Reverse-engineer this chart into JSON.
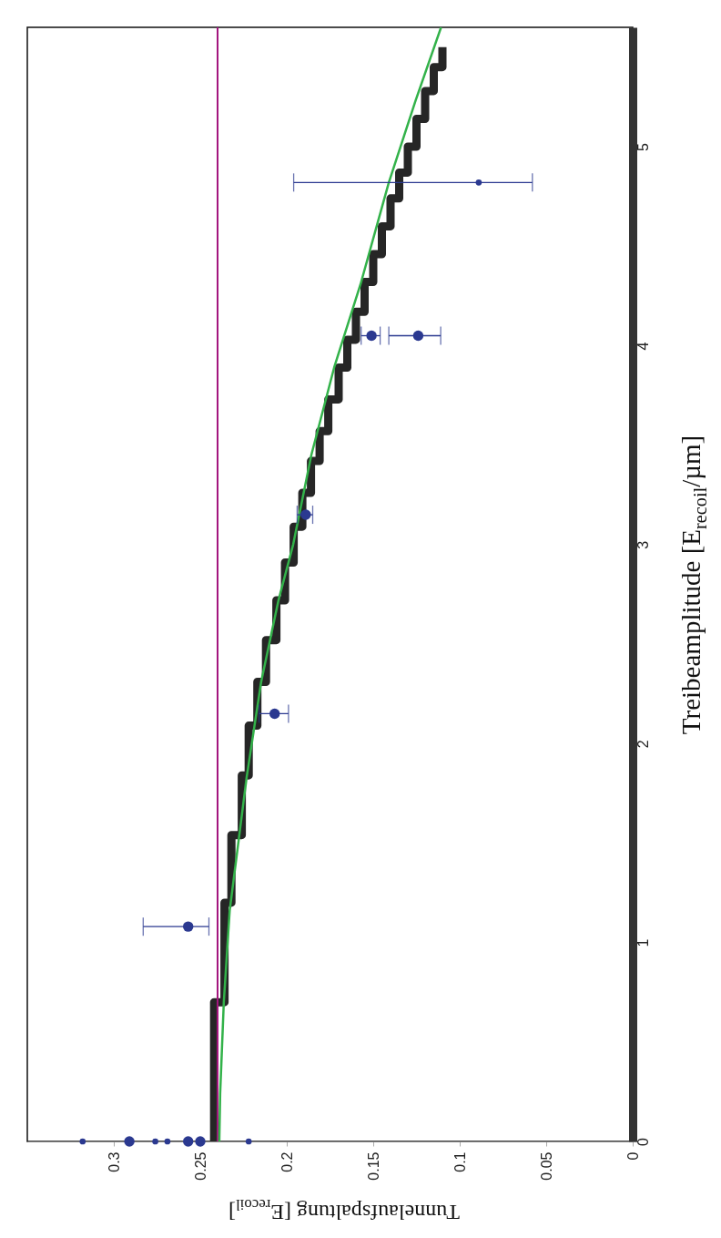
{
  "chart_data": {
    "type": "scatter",
    "xlabel": "Tunnelaufspaltung [E$_{recoil}$]",
    "ylabel": "Treibeamplitude [E$_{recoil}$/µm]",
    "xlim": [
      0.35,
      0
    ],
    "xticks": [
      0.3,
      0.25,
      0.2,
      0.15,
      0.1,
      0.05,
      0
    ],
    "ylim": [
      0,
      5.6
    ],
    "yticks": [
      0,
      1,
      2,
      3,
      4,
      5
    ],
    "grid": false,
    "ref_lines": [
      {
        "axis": "x",
        "value": 0.24,
        "color": "#a3167e"
      }
    ],
    "series": [
      {
        "type": "step",
        "color": "#262626",
        "x": [
          0.242,
          0.242,
          0.236,
          0.232,
          0.226,
          0.222,
          0.217,
          0.212,
          0.206,
          0.201,
          0.196,
          0.191,
          0.186,
          0.181,
          0.176,
          0.17,
          0.165,
          0.16,
          0.155,
          0.15,
          0.145,
          0.14,
          0.135,
          0.13,
          0.125,
          0.12,
          0.115,
          0.11
        ],
        "values": [
          0,
          0.7,
          1.2,
          1.54,
          1.84,
          2.09,
          2.31,
          2.52,
          2.72,
          2.91,
          3.09,
          3.26,
          3.42,
          3.57,
          3.73,
          3.89,
          4.03,
          4.17,
          4.32,
          4.46,
          4.6,
          4.74,
          4.87,
          5.0,
          5.14,
          5.28,
          5.4,
          5.5
        ]
      },
      {
        "type": "line",
        "color": "#33b24a",
        "x": [
          0.239,
          0.2385,
          0.2364,
          0.233,
          0.2232,
          0.2148,
          0.2048,
          0.1963,
          0.1858,
          0.1726,
          0.1573,
          0.141,
          0.1256,
          0.1108
        ],
        "values": [
          0,
          0.24,
          0.7,
          1.16,
          1.83,
          2.31,
          2.72,
          3.0,
          3.45,
          3.89,
          4.31,
          4.82,
          5.23,
          5.6
        ]
      },
      {
        "color": "#2b3990",
        "marker": "circle",
        "x": [
          0.291,
          0.257,
          0.25,
          0.257,
          0.207,
          0.189,
          0.151,
          0.124
        ],
        "values": [
          0,
          0,
          0,
          1.08,
          2.15,
          3.15,
          4.05,
          4.05
        ],
        "xerrors": [
          null,
          null,
          null,
          [
            0.245,
            0.283
          ],
          [
            0.199,
            0.216
          ],
          [
            0.185,
            0.194
          ],
          [
            0.146,
            0.157
          ],
          [
            0.111,
            0.141
          ]
        ]
      },
      {
        "color": "#2b3990",
        "marker": "circle",
        "x": [
          0.318,
          0.276,
          0.269,
          0.222,
          0.089
        ],
        "values": [
          0,
          0,
          0,
          0,
          4.82
        ],
        "xerrors": [
          null,
          null,
          null,
          null,
          [
            0.058,
            0.196
          ]
        ]
      }
    ]
  }
}
